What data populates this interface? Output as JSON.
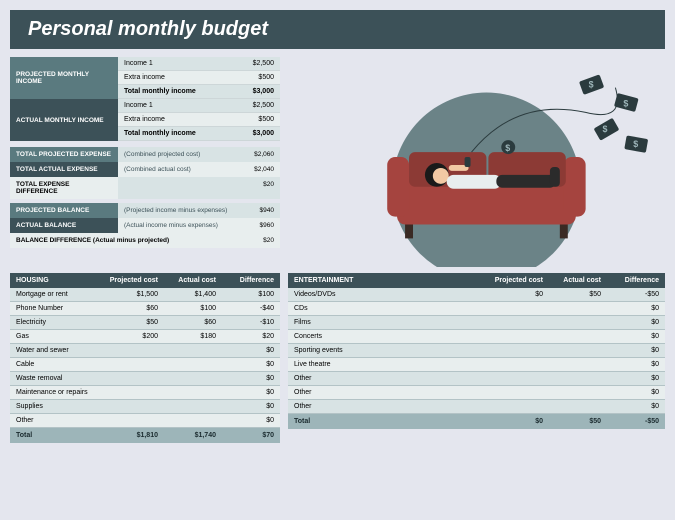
{
  "title": "Personal monthly budget",
  "colors": {
    "header_dark": "#3c5158",
    "teal_med": "#5a7a7f",
    "teal_light": "#9db5b9",
    "row_alt1": "#d8e3e4",
    "row_alt2": "#e8eeee",
    "page_bg": "#e4e6ee",
    "text_white": "#ffffff"
  },
  "income": {
    "projected": {
      "label": "PROJECTED MONTHLY INCOME",
      "bg": "#5a7a7f",
      "lines": [
        {
          "label": "Income 1",
          "value": "$2,500"
        },
        {
          "label": "Extra income",
          "value": "$500"
        }
      ],
      "total": {
        "label": "Total monthly income",
        "value": "$3,000"
      }
    },
    "actual": {
      "label": "ACTUAL MONTHLY INCOME",
      "bg": "#3c5158",
      "lines": [
        {
          "label": "Income 1",
          "value": "$2,500"
        },
        {
          "label": "Extra income",
          "value": "$500"
        }
      ],
      "total": {
        "label": "Total monthly income",
        "value": "$3,000"
      }
    }
  },
  "summary": [
    {
      "label": "TOTAL PROJECTED EXPENSE",
      "bg": "#5a7a7f",
      "fg": "#ffffff",
      "note": "(Combined projected cost)",
      "value": "$2,060",
      "row_bg": "#d8e3e4"
    },
    {
      "label": "TOTAL ACTUAL EXPENSE",
      "bg": "#3c5158",
      "fg": "#ffffff",
      "note": "(Combined actual cost)",
      "value": "$2,040",
      "row_bg": "#e8eeee"
    },
    {
      "label": "TOTAL EXPENSE DIFFERENCE",
      "bg": "#e8eeee",
      "fg": "#000000",
      "note": "",
      "value": "$20",
      "row_bg": "#d8e3e4"
    },
    {
      "label": "PROJECTED BALANCE",
      "bg": "#5a7a7f",
      "fg": "#ffffff",
      "note": "(Projected income minus expenses)",
      "value": "$940",
      "row_bg": "#d8e3e4"
    },
    {
      "label": "ACTUAL BALANCE",
      "bg": "#3c5158",
      "fg": "#ffffff",
      "note": "(Actual income minus expenses)",
      "value": "$960",
      "row_bg": "#e8eeee"
    },
    {
      "label": "BALANCE DIFFERENCE (Actual minus projected)",
      "bg": "#e8eeee",
      "fg": "#000000",
      "note": "",
      "value": "$20",
      "row_bg": "#e8eeee",
      "wide": true
    }
  ],
  "categories": {
    "left": {
      "title": "HOUSING",
      "columns": [
        "Projected cost",
        "Actual cost",
        "Difference"
      ],
      "rows": [
        {
          "name": "Mortgage or rent",
          "p": "$1,500",
          "a": "$1,400",
          "d": "$100"
        },
        {
          "name": "Phone Number",
          "p": "$60",
          "a": "$100",
          "d": "-$40"
        },
        {
          "name": "Electricity",
          "p": "$50",
          "a": "$60",
          "d": "-$10"
        },
        {
          "name": "Gas",
          "p": "$200",
          "a": "$180",
          "d": "$20"
        },
        {
          "name": "Water and sewer",
          "p": "",
          "a": "",
          "d": "$0"
        },
        {
          "name": "Cable",
          "p": "",
          "a": "",
          "d": "$0"
        },
        {
          "name": "Waste removal",
          "p": "",
          "a": "",
          "d": "$0"
        },
        {
          "name": "Maintenance or repairs",
          "p": "",
          "a": "",
          "d": "$0"
        },
        {
          "name": "Supplies",
          "p": "",
          "a": "",
          "d": "$0"
        },
        {
          "name": "Other",
          "p": "",
          "a": "",
          "d": "$0"
        }
      ],
      "total": {
        "label": "Total",
        "p": "$1,810",
        "a": "$1,740",
        "d": "$70"
      }
    },
    "right": {
      "title": "ENTERTAINMENT",
      "columns": [
        "Projected cost",
        "Actual cost",
        "Difference"
      ],
      "rows": [
        {
          "name": "Videos/DVDs",
          "p": "$0",
          "a": "$50",
          "d": "-$50"
        },
        {
          "name": "CDs",
          "p": "",
          "a": "",
          "d": "$0"
        },
        {
          "name": "Films",
          "p": "",
          "a": "",
          "d": "$0"
        },
        {
          "name": "Concerts",
          "p": "",
          "a": "",
          "d": "$0"
        },
        {
          "name": "Sporting events",
          "p": "",
          "a": "",
          "d": "$0"
        },
        {
          "name": "Live theatre",
          "p": "",
          "a": "",
          "d": "$0"
        },
        {
          "name": "Other",
          "p": "",
          "a": "",
          "d": "$0"
        },
        {
          "name": "Other",
          "p": "",
          "a": "",
          "d": "$0"
        },
        {
          "name": "Other",
          "p": "",
          "a": "",
          "d": "$0"
        }
      ],
      "total": {
        "label": "Total",
        "p": "$0",
        "a": "$50",
        "d": "-$50"
      }
    }
  },
  "illustration": {
    "bg_circle": "#6b8387",
    "couch": "#a5443f",
    "couch_shadow": "#6f2d2a",
    "legs": "#3a2a24",
    "skin": "#f2c9a4",
    "hair": "#1a1a1a",
    "shirt": "#e8eeee",
    "pants": "#2b2b2b",
    "money": "#2b3b3e"
  }
}
